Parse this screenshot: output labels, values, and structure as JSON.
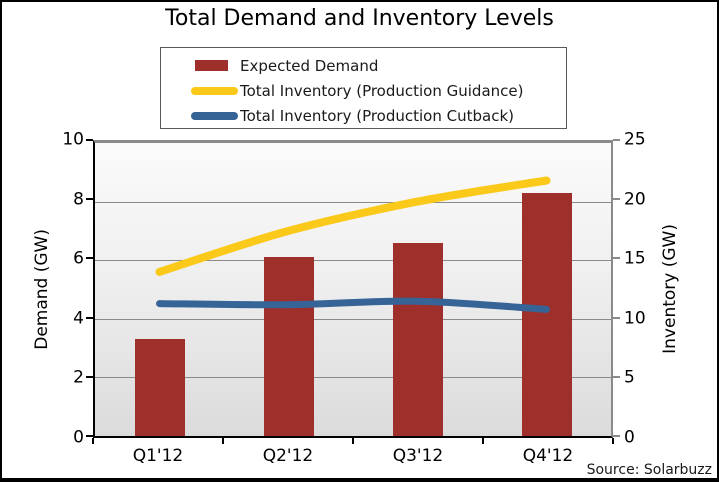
{
  "chart_data": {
    "type": "combo-bar-line",
    "title": "Total Demand and Inventory Levels",
    "source": "Source: Solarbuzz",
    "categories": [
      "Q1'12",
      "Q2'12",
      "Q3'12",
      "Q4'12"
    ],
    "bar_series": {
      "name": "Expected Demand",
      "axis": "left",
      "values": [
        3.3,
        6.1,
        6.6,
        8.3
      ],
      "color": "#9E2F2B"
    },
    "line_series": [
      {
        "name": "Total Inventory (Production Guidance)",
        "axis": "right",
        "values": [
          14,
          17.5,
          20,
          21.8
        ],
        "color": "#FAC919"
      },
      {
        "name": "Total Inventory (Production Cutback)",
        "axis": "right",
        "values": [
          11.3,
          11.2,
          11.5,
          10.8
        ],
        "color": "#366496"
      }
    ],
    "left_axis": {
      "label": "Demand (GW)",
      "min": 0,
      "max": 10,
      "ticks": [
        0,
        2,
        4,
        6,
        8,
        10
      ]
    },
    "right_axis": {
      "label": "Inventory (GW)",
      "min": 0,
      "max": 25,
      "ticks": [
        0,
        5,
        10,
        15,
        20,
        25
      ]
    },
    "legend_position": "top",
    "grid": true,
    "plot_bg_top": "#fbfbfb",
    "plot_bg_bottom": "#dbdbdb",
    "gridline_color": "#8a8a8a"
  }
}
